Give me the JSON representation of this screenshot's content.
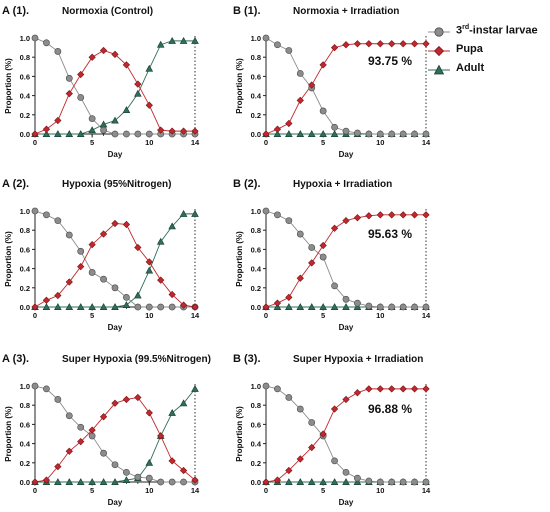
{
  "legend": {
    "larvae_prefix": "3",
    "larvae_sup": "rd",
    "larvae_suffix": "-instar larvae",
    "pupa": "Pupa",
    "adult": "Adult"
  },
  "colors": {
    "larvae": "#8c8c8c",
    "pupa": "#c0282e",
    "adult": "#2f6e5a"
  },
  "chart_data": [
    {
      "type": "line",
      "panel_label": "A (1).",
      "title": "Normoxia (Control)",
      "xlabel": "Day",
      "ylabel": "Proportion (%)",
      "xlim": [
        0,
        14
      ],
      "ylim": [
        0,
        1.0
      ],
      "x_ticks": [
        "0",
        "5",
        "10",
        "14"
      ],
      "y_ticks": [
        "0.0",
        "0.2",
        "0.4",
        "0.6",
        "0.8",
        "1.0"
      ],
      "annotation": "",
      "x": [
        0,
        1,
        2,
        3,
        4,
        5,
        6,
        7,
        8,
        9,
        10,
        11,
        12,
        13,
        14
      ],
      "series": [
        {
          "name": "3rd-instar larvae",
          "marker": "circle",
          "values": [
            1.0,
            0.95,
            0.86,
            0.58,
            0.38,
            0.16,
            0.04,
            0.0,
            0.0,
            0.0,
            0.0,
            0.0,
            0.0,
            0.0,
            0.0
          ]
        },
        {
          "name": "Pupa",
          "marker": "diamond",
          "values": [
            0.0,
            0.05,
            0.14,
            0.42,
            0.62,
            0.8,
            0.87,
            0.83,
            0.72,
            0.52,
            0.3,
            0.04,
            0.03,
            0.03,
            0.03
          ]
        },
        {
          "name": "Adult",
          "marker": "triangle",
          "values": [
            0.0,
            0.0,
            0.0,
            0.0,
            0.0,
            0.04,
            0.1,
            0.14,
            0.25,
            0.42,
            0.68,
            0.93,
            0.97,
            0.97,
            0.97
          ]
        }
      ]
    },
    {
      "type": "line",
      "panel_label": "B (1).",
      "title": "Normoxia + Irradiation",
      "xlabel": "Day",
      "ylabel": "Proportion (%)",
      "xlim": [
        0,
        14
      ],
      "ylim": [
        0,
        1.0
      ],
      "x_ticks": [
        "0",
        "5",
        "10",
        "14"
      ],
      "y_ticks": [
        "0.0",
        "0.2",
        "0.4",
        "0.6",
        "0.8",
        "1.0"
      ],
      "annotation": "93.75 %",
      "x": [
        0,
        1,
        2,
        3,
        4,
        5,
        6,
        7,
        8,
        9,
        10,
        11,
        12,
        13,
        14
      ],
      "series": [
        {
          "name": "3rd-instar larvae",
          "marker": "circle",
          "values": [
            1.0,
            0.93,
            0.87,
            0.63,
            0.48,
            0.24,
            0.07,
            0.03,
            0.01,
            0.0,
            0.0,
            0.0,
            0.0,
            0.0,
            0.0
          ]
        },
        {
          "name": "Pupa",
          "marker": "diamond",
          "values": [
            0.0,
            0.05,
            0.11,
            0.35,
            0.51,
            0.72,
            0.9,
            0.93,
            0.94,
            0.94,
            0.94,
            0.94,
            0.94,
            0.94,
            0.94
          ]
        },
        {
          "name": "Adult",
          "marker": "triangle",
          "values": [
            0.0,
            0.0,
            0.0,
            0.0,
            0.0,
            0.0,
            0.0,
            0.0,
            0.0,
            0.0,
            0.0,
            0.0,
            0.0,
            0.0,
            0.0
          ]
        }
      ]
    },
    {
      "type": "line",
      "panel_label": "A (2).",
      "title": "Hypoxia (95%Nitrogen)",
      "xlabel": "Day",
      "ylabel": "Proportion (%)",
      "xlim": [
        0,
        14
      ],
      "ylim": [
        0,
        1.0
      ],
      "x_ticks": [
        "0",
        "5",
        "10",
        "14"
      ],
      "y_ticks": [
        "0.0",
        "0.2",
        "0.4",
        "0.6",
        "0.8",
        "1.0"
      ],
      "annotation": "",
      "x": [
        0,
        1,
        2,
        3,
        4,
        5,
        6,
        7,
        8,
        9,
        10,
        11,
        12,
        13,
        14
      ],
      "series": [
        {
          "name": "3rd-instar larvae",
          "marker": "circle",
          "values": [
            1.0,
            0.96,
            0.9,
            0.75,
            0.58,
            0.36,
            0.29,
            0.2,
            0.1,
            0.0,
            0.0,
            0.0,
            0.0,
            0.0,
            0.0
          ]
        },
        {
          "name": "Pupa",
          "marker": "diamond",
          "values": [
            0.0,
            0.07,
            0.12,
            0.26,
            0.42,
            0.65,
            0.76,
            0.87,
            0.86,
            0.62,
            0.47,
            0.28,
            0.13,
            0.02,
            0.0
          ]
        },
        {
          "name": "Adult",
          "marker": "triangle",
          "values": [
            0.0,
            0.0,
            0.0,
            0.0,
            0.0,
            0.0,
            0.0,
            0.0,
            0.02,
            0.12,
            0.38,
            0.68,
            0.84,
            0.97,
            0.97
          ]
        }
      ]
    },
    {
      "type": "line",
      "panel_label": "B (2).",
      "title": "Hypoxia + Irradiation",
      "xlabel": "Day",
      "ylabel": "Proportion (%)",
      "xlim": [
        0,
        14
      ],
      "ylim": [
        0,
        1.0
      ],
      "x_ticks": [
        "0",
        "5",
        "10",
        "14"
      ],
      "y_ticks": [
        "0.0",
        "0.2",
        "0.4",
        "0.6",
        "0.8",
        "1.0"
      ],
      "annotation": "95.63 %",
      "x": [
        0,
        1,
        2,
        3,
        4,
        5,
        6,
        7,
        8,
        9,
        10,
        11,
        12,
        13,
        14
      ],
      "series": [
        {
          "name": "3rd-instar larvae",
          "marker": "circle",
          "values": [
            1.0,
            0.96,
            0.9,
            0.76,
            0.62,
            0.52,
            0.22,
            0.08,
            0.04,
            0.01,
            0.0,
            0.0,
            0.0,
            0.0,
            0.0
          ]
        },
        {
          "name": "Pupa",
          "marker": "diamond",
          "values": [
            0.0,
            0.04,
            0.1,
            0.3,
            0.46,
            0.64,
            0.82,
            0.9,
            0.93,
            0.95,
            0.96,
            0.96,
            0.96,
            0.96,
            0.96
          ]
        },
        {
          "name": "Adult",
          "marker": "triangle",
          "values": [
            0.0,
            0.0,
            0.0,
            0.0,
            0.0,
            0.0,
            0.0,
            0.0,
            0.0,
            0.0,
            0.0,
            0.0,
            0.0,
            0.0,
            0.0
          ]
        }
      ]
    },
    {
      "type": "line",
      "panel_label": "A (3).",
      "title": "Super Hypoxia (99.5%Nitrogen)",
      "xlabel": "Day",
      "ylabel": "Proportion (%)",
      "xlim": [
        0,
        14
      ],
      "ylim": [
        0,
        1.0
      ],
      "x_ticks": [
        "0",
        "5",
        "10",
        "14"
      ],
      "y_ticks": [
        "0.0",
        "0.2",
        "0.4",
        "0.6",
        "0.8",
        "1.0"
      ],
      "annotation": "",
      "x": [
        0,
        1,
        2,
        3,
        4,
        5,
        6,
        7,
        8,
        9,
        10,
        11,
        12,
        13,
        14
      ],
      "series": [
        {
          "name": "3rd-instar larvae",
          "marker": "circle",
          "values": [
            1.0,
            0.97,
            0.86,
            0.69,
            0.57,
            0.48,
            0.3,
            0.18,
            0.1,
            0.05,
            0.04,
            0.0,
            0.0,
            0.0,
            0.0
          ]
        },
        {
          "name": "Pupa",
          "marker": "diamond",
          "values": [
            0.0,
            0.02,
            0.16,
            0.32,
            0.42,
            0.54,
            0.68,
            0.82,
            0.86,
            0.88,
            0.72,
            0.48,
            0.22,
            0.12,
            0.02
          ]
        },
        {
          "name": "Adult",
          "marker": "triangle",
          "values": [
            0.0,
            0.0,
            0.0,
            0.0,
            0.0,
            0.0,
            0.0,
            0.0,
            0.02,
            0.04,
            0.2,
            0.48,
            0.72,
            0.82,
            0.97
          ]
        }
      ]
    },
    {
      "type": "line",
      "panel_label": "B (3).",
      "title": "Super Hypoxia + Irradiation",
      "xlabel": "Day",
      "ylabel": "Proportion (%)",
      "xlim": [
        0,
        14
      ],
      "ylim": [
        0,
        1.0
      ],
      "x_ticks": [
        "0",
        "5",
        "10",
        "14"
      ],
      "y_ticks": [
        "0.0",
        "0.2",
        "0.4",
        "0.6",
        "0.8",
        "1.0"
      ],
      "annotation": "96.88 %",
      "x": [
        0,
        1,
        2,
        3,
        4,
        5,
        6,
        7,
        8,
        9,
        10,
        11,
        12,
        13,
        14
      ],
      "series": [
        {
          "name": "3rd-instar larvae",
          "marker": "circle",
          "values": [
            1.0,
            0.97,
            0.88,
            0.76,
            0.62,
            0.48,
            0.22,
            0.1,
            0.04,
            0.01,
            0.0,
            0.0,
            0.0,
            0.0,
            0.0
          ]
        },
        {
          "name": "Pupa",
          "marker": "diamond",
          "values": [
            0.0,
            0.02,
            0.12,
            0.24,
            0.36,
            0.5,
            0.76,
            0.86,
            0.93,
            0.97,
            0.97,
            0.97,
            0.97,
            0.97,
            0.97
          ]
        },
        {
          "name": "Adult",
          "marker": "triangle",
          "values": [
            0.0,
            0.0,
            0.0,
            0.0,
            0.0,
            0.0,
            0.0,
            0.0,
            0.0,
            0.0,
            0.0,
            0.0,
            0.0,
            0.0,
            0.0
          ]
        }
      ]
    }
  ]
}
